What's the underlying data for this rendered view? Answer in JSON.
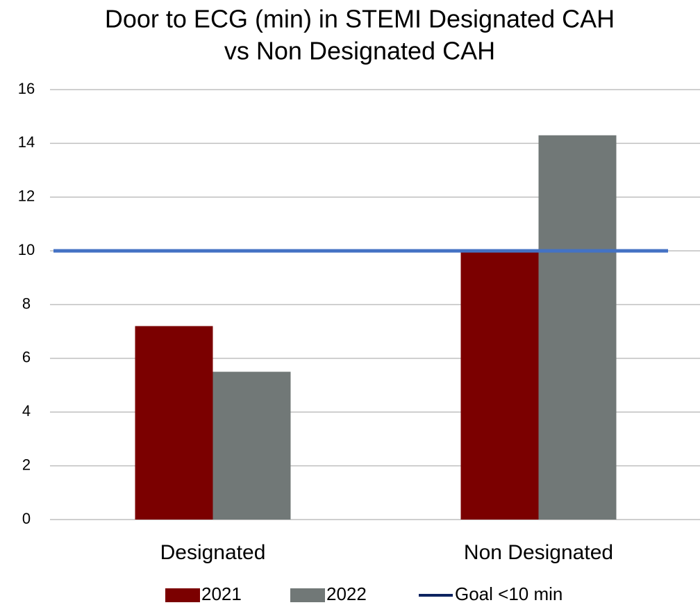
{
  "chart_data": {
    "type": "bar",
    "title": [
      "Door to ECG (min) in STEMI Designated CAH",
      "vs Non Designated CAH"
    ],
    "categories": [
      "Designated",
      "Non Designated"
    ],
    "series": [
      {
        "name": "2021",
        "color": "#7b0000",
        "values": [
          7.2,
          10.0
        ]
      },
      {
        "name": "2022",
        "color": "#717877",
        "values": [
          5.5,
          14.3
        ]
      }
    ],
    "goal": {
      "name": "Goal <10 min",
      "value": 10,
      "color": "#4472c4",
      "legend_color": "#0d2360"
    },
    "ylim": [
      0,
      16
    ],
    "yticks": [
      0,
      2,
      4,
      6,
      8,
      10,
      12,
      14,
      16
    ],
    "grid": true
  }
}
